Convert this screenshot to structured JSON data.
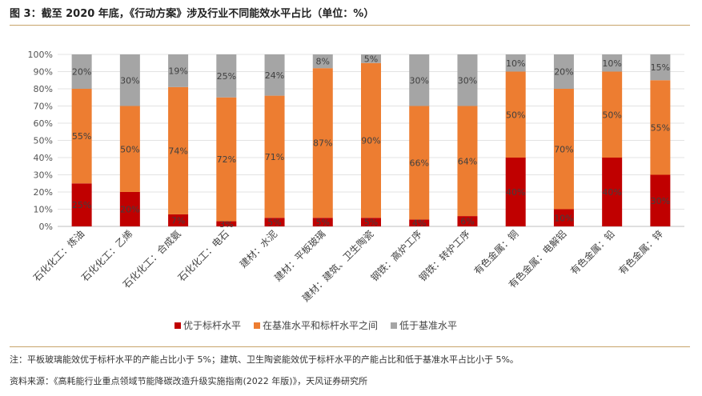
{
  "title": "图 3：截至 2020 年底，《行动方案》涉及行业不同能效水平占比（单位：%）",
  "note": "注：平板玻璃能效优于标杆水平的产能占比小于 5%；建筑、卫生陶瓷能效优于标杆水平的产能占比和低于基准水平占比小于 5%。",
  "source": "资料来源：《高耗能行业重点领域节能降碳改造升级实施指南(2022 年版)》，天风证券研究所",
  "colors": {
    "s1": "#c00000",
    "s2": "#ed7d31",
    "s3": "#a5a5a5",
    "rule": "#c8a46a"
  },
  "chart_data": {
    "type": "bar",
    "stacked": true,
    "categories": [
      "石化化工：炼油",
      "石化化工：乙烯",
      "石化化工：合成氨",
      "石化化工：电石",
      "建材：水泥",
      "建材：平板玻璃",
      "建材：建筑、卫生陶瓷",
      "钢铁：高炉工序",
      "钢铁：转炉工序",
      "有色金属：铜",
      "有色金属：电解铝",
      "有色金属：铅",
      "有色金属：锌"
    ],
    "series": [
      {
        "name": "优于标杆水平",
        "values": [
          25,
          20,
          7,
          3,
          5,
          5,
          5,
          4,
          6,
          40,
          10,
          40,
          30
        ],
        "labels": [
          "25%",
          "20%",
          "7%",
          "3%",
          "5%",
          "5%",
          "5%",
          "4%",
          "6%",
          "40%",
          "10%",
          "40%",
          "30%"
        ]
      },
      {
        "name": "在基准水平和标杆水平之间",
        "values": [
          55,
          50,
          74,
          72,
          71,
          87,
          90,
          66,
          64,
          50,
          70,
          50,
          55
        ],
        "labels": [
          "55%",
          "50%",
          "74%",
          "72%",
          "71%",
          "87%",
          "90%",
          "66%",
          "64%",
          "50%",
          "70%",
          "50%",
          "55%"
        ]
      },
      {
        "name": "低于基准水平",
        "values": [
          20,
          30,
          19,
          25,
          24,
          8,
          5,
          30,
          30,
          10,
          20,
          10,
          15
        ],
        "labels": [
          "20%",
          "30%",
          "19%",
          "25%",
          "24%",
          "8%",
          "5%",
          "30%",
          "30%",
          "10%",
          "20%",
          "10%",
          "15%"
        ]
      }
    ],
    "ylim": [
      0,
      100
    ],
    "yticks": [
      "0%",
      "10%",
      "20%",
      "30%",
      "40%",
      "50%",
      "60%",
      "70%",
      "80%",
      "90%",
      "100%"
    ],
    "grid": true,
    "legend_position": "bottom"
  }
}
